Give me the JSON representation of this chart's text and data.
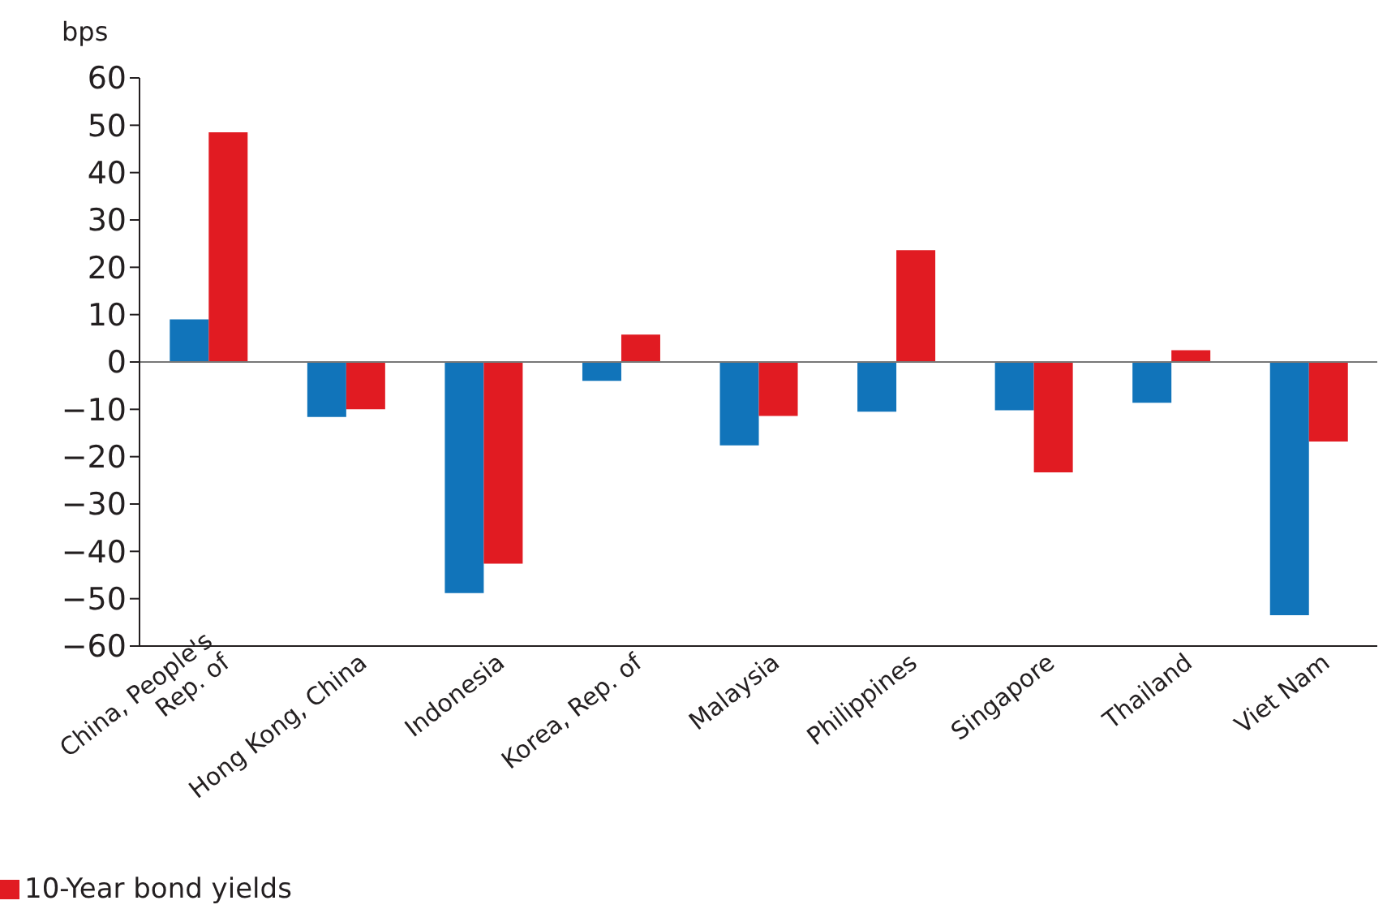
{
  "chart_data": {
    "type": "bar",
    "ylabel": "bps",
    "categories": [
      "China, People's Rep. of",
      "Hong Kong, China",
      "Indonesia",
      "Korea, Rep. of",
      "Malaysia",
      "Philippines",
      "Singapore",
      "Thailand",
      "Viet Nam"
    ],
    "series": [
      {
        "color": "#1174ba",
        "values": [
          9,
          -11.6,
          -48.8,
          -4,
          -17.6,
          -10.5,
          -10.2,
          -8.6,
          -53.5
        ]
      },
      {
        "name": "10-Year bond yields",
        "color": "#e11b22",
        "values": [
          48.5,
          -10,
          -42.6,
          5.8,
          -11.4,
          23.6,
          -23.3,
          2.5,
          -16.8
        ]
      }
    ],
    "ylim": [
      -60,
      60
    ],
    "yticks": [
      -60,
      -50,
      -40,
      -30,
      -20,
      -10,
      0,
      10,
      20,
      30,
      40,
      50,
      60
    ],
    "legend": "bottom left"
  }
}
